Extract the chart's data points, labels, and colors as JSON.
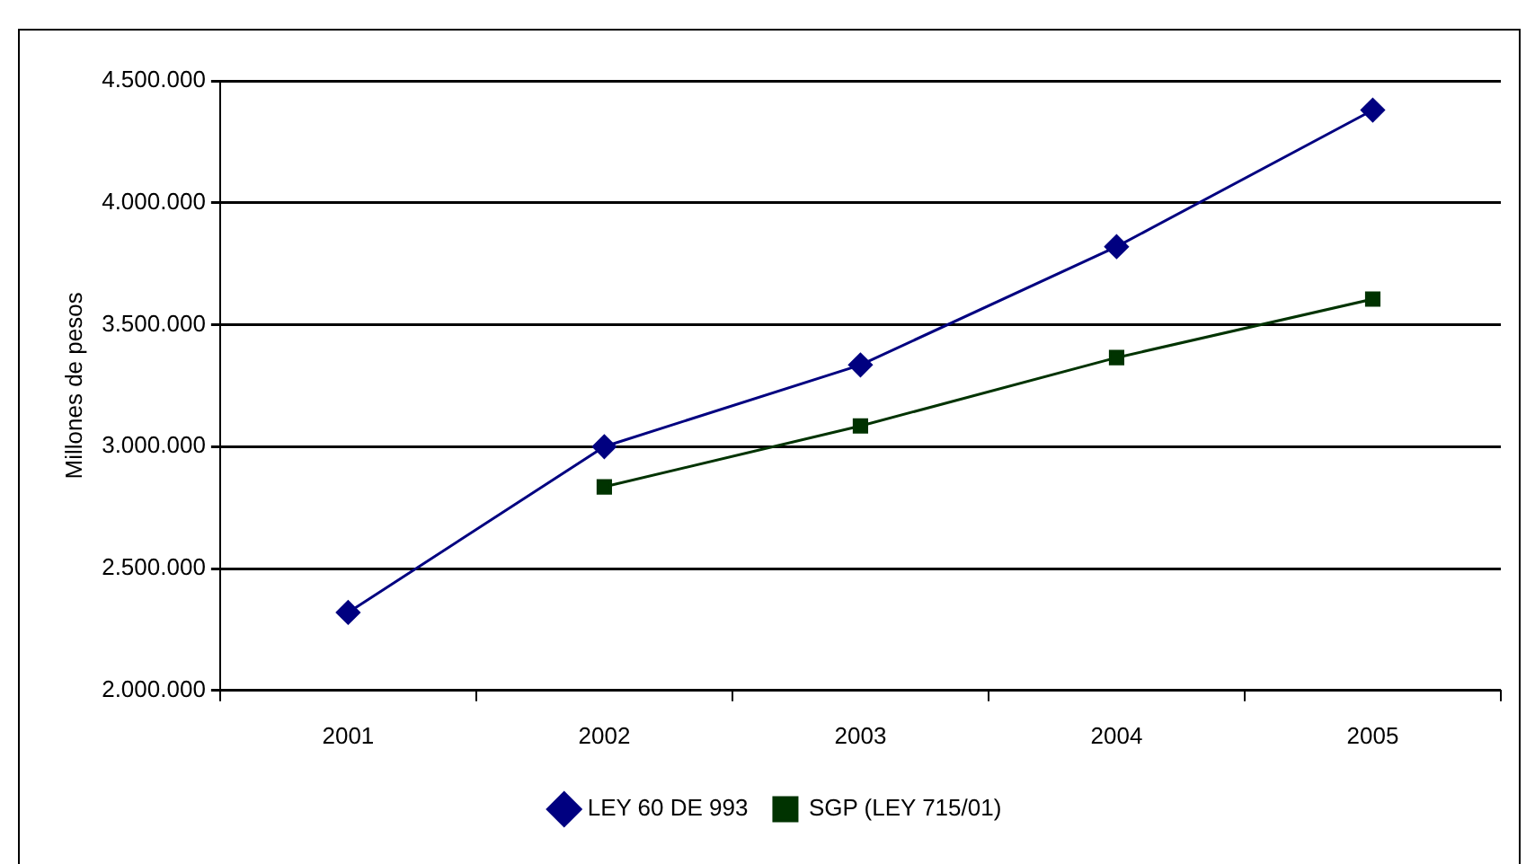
{
  "chart_data": {
    "type": "line",
    "ylabel": "Millones de pesos",
    "categories": [
      "2001",
      "2002",
      "2003",
      "2004",
      "2005"
    ],
    "series": [
      {
        "name": "LEY 60 DE 993",
        "color": "#000080",
        "marker": "diamond",
        "values": [
          2320000,
          3000000,
          3335000,
          3820000,
          4380000
        ]
      },
      {
        "name": "SGP (LEY 715/01)",
        "color": "#003300",
        "marker": "square",
        "values": [
          null,
          2835000,
          3085000,
          3365000,
          3605000
        ]
      }
    ],
    "ylim": [
      2000000,
      4500000
    ],
    "yticks": [
      {
        "value": 2000000,
        "label": "2.000.000"
      },
      {
        "value": 2500000,
        "label": "2.500.000"
      },
      {
        "value": 3000000,
        "label": "3.000.000"
      },
      {
        "value": 3500000,
        "label": "3.500.000"
      },
      {
        "value": 4000000,
        "label": "4.000.000"
      },
      {
        "value": 4500000,
        "label": "4.500.000"
      }
    ],
    "grid": "y",
    "legend": "bottom",
    "line_style": "solid"
  }
}
